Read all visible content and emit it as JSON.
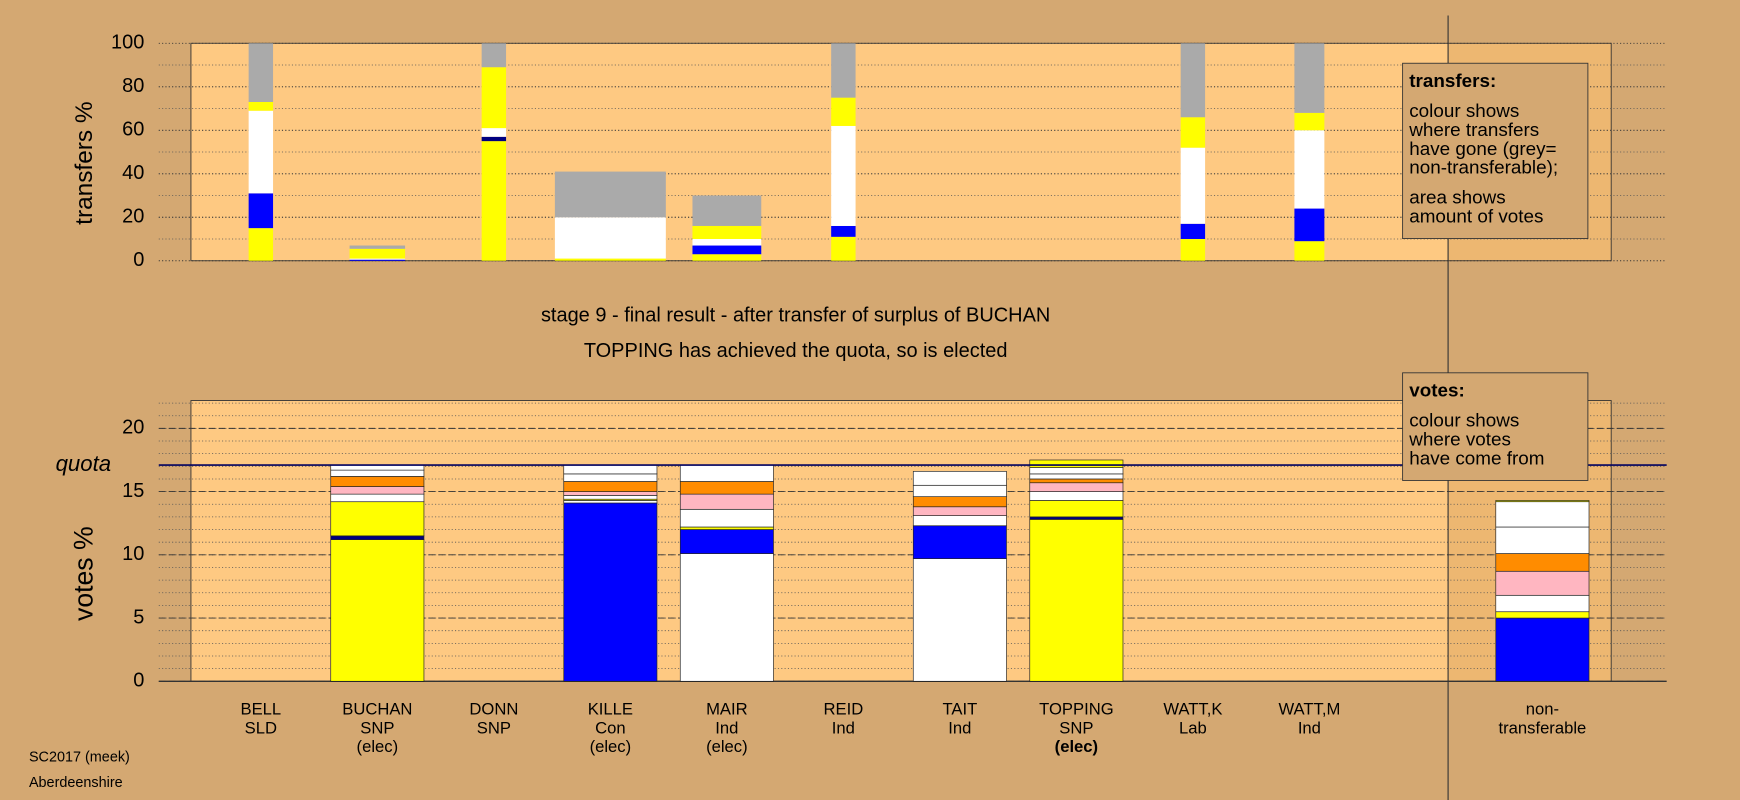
{
  "chart_data": [
    {
      "type": "variable-width-stacked-bar",
      "ylabel": "transfers %",
      "ylim": [
        0,
        100
      ],
      "yticks": [
        0,
        20,
        40,
        60,
        80,
        100
      ],
      "minor_step": 10,
      "weights": [
        0.22,
        0.5,
        0.22,
        1.0,
        0.62,
        0.22,
        0,
        0,
        0.22,
        0.27
      ],
      "series": [
        {
          "color": "#ffff00",
          "values": [
            15,
            0,
            55,
            1,
            3,
            11,
            0,
            0,
            10,
            9
          ]
        },
        {
          "color": "#000080",
          "values": [
            0,
            0,
            2,
            0,
            0,
            0,
            0,
            0,
            0,
            0
          ]
        },
        {
          "color": "#0000ff",
          "values": [
            16,
            0.5,
            0,
            0,
            4,
            5,
            0,
            0,
            7,
            15
          ]
        },
        {
          "color": "#ffffff",
          "values": [
            38,
            0.5,
            4,
            19,
            3,
            46,
            0,
            0,
            35,
            36
          ]
        },
        {
          "color": "#ffff00",
          "values": [
            4,
            4.5,
            28,
            0,
            6,
            13,
            0,
            0,
            14,
            8
          ]
        },
        {
          "color": "#aaaaaa",
          "values": [
            27,
            1.5,
            11,
            21,
            14,
            25,
            0,
            0,
            34,
            32
          ]
        }
      ],
      "note": {
        "title": "transfers:",
        "lines": [
          "colour shows",
          "where transfers",
          "have gone (grey=",
          "non-transferable);"
        ],
        "lines2": [
          "area shows",
          "amount of votes"
        ]
      }
    },
    {
      "type": "stacked-bar",
      "title": "stage 9 - final result - after transfer of surplus of BUCHAN",
      "subtitle": "TOPPING has achieved the quota, so is elected",
      "ylabel": "votes %",
      "ylim": [
        0,
        22.2
      ],
      "yticks": [
        0,
        5,
        10,
        15,
        20
      ],
      "minor_step": 1,
      "quota": 17.1,
      "quota_label": "quota",
      "categories": [
        "BELL",
        "BUCHAN",
        "DONN",
        "KILLE",
        "MAIR",
        "REID",
        "TAIT",
        "TOPPING",
        "WATT,K",
        "WATT,M",
        null,
        "non-"
      ],
      "parties": [
        "SLD",
        "SNP",
        "SNP",
        "Con",
        "Ind",
        "Ind",
        "Ind",
        "SNP",
        "Lab",
        "Ind",
        null,
        "transferable"
      ],
      "status": [
        null,
        "(elec)",
        null,
        "(elec)",
        "(elec)",
        null,
        null,
        "(elec)",
        null,
        null,
        null,
        null
      ],
      "bold_index": 7,
      "series": [
        {
          "color": "#ffffff",
          "values": [
            0,
            0,
            0,
            0,
            10.1,
            0,
            9.7,
            0,
            0,
            0,
            null,
            0
          ]
        },
        {
          "color": "#ffff00",
          "values": [
            0,
            11.2,
            0,
            0,
            0,
            0,
            0,
            12.8,
            0,
            0,
            null,
            0
          ]
        },
        {
          "color": "#000080",
          "values": [
            0,
            0.3,
            0,
            0,
            0,
            0,
            0,
            0.2,
            0,
            0,
            null,
            0
          ]
        },
        {
          "color": "#0000ff",
          "values": [
            0,
            0,
            0,
            14.1,
            1.9,
            0,
            2.6,
            0,
            0,
            0,
            null,
            5.0
          ]
        },
        {
          "color": "#ffffff",
          "values": [
            0,
            0,
            0,
            0.2,
            0,
            0,
            0,
            0,
            0,
            0,
            null,
            0
          ]
        },
        {
          "color": "#ffff00",
          "values": [
            0,
            2.7,
            0,
            0.1,
            0.2,
            0,
            0,
            1.3,
            0,
            0,
            null,
            0.5
          ]
        },
        {
          "color": "#ffffff",
          "values": [
            0,
            0.6,
            0,
            0.3,
            1.4,
            0,
            0.8,
            0.7,
            0,
            0,
            null,
            1.3
          ]
        },
        {
          "color": "#ffb6c1",
          "values": [
            0,
            0.6,
            0,
            0.3,
            1.2,
            0,
            0.7,
            0.7,
            0,
            0,
            null,
            1.9
          ]
        },
        {
          "color": "#ff8c00",
          "values": [
            0,
            0.8,
            0,
            0.8,
            1.0,
            0,
            0.8,
            0.3,
            0,
            0,
            null,
            1.4
          ]
        },
        {
          "color": "#ffffff",
          "values": [
            0,
            0.5,
            0,
            0.6,
            1.3,
            0,
            0.9,
            0.4,
            0,
            0,
            null,
            2.1
          ]
        },
        {
          "color": "#ffffff",
          "values": [
            0,
            0.4,
            0,
            0.7,
            0,
            0,
            1.1,
            0.5,
            0,
            0,
            null,
            2.0
          ]
        },
        {
          "color": "#ffff00",
          "values": [
            0,
            0,
            0,
            0,
            0,
            0,
            0,
            0.6,
            0,
            0,
            null,
            0.1
          ]
        }
      ],
      "note": {
        "title": "votes:",
        "lines": [
          "colour shows",
          "where votes",
          "have come from"
        ]
      }
    }
  ],
  "footer": [
    "SC2017 (meek)",
    "Aberdeenshire"
  ]
}
